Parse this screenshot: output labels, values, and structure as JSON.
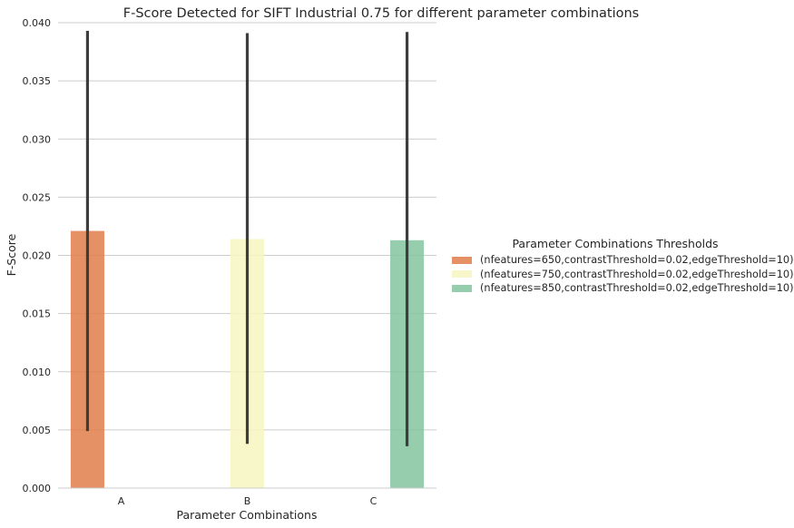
{
  "chart_data": {
    "type": "bar",
    "title": "F-Score Detected for SIFT Industrial 0.75 for different parameter combinations",
    "xlabel": "Parameter Combinations",
    "ylabel": "F-Score",
    "categories": [
      "A",
      "B",
      "C"
    ],
    "ylim": [
      0,
      0.04
    ],
    "yticks": [
      "0.000",
      "0.005",
      "0.010",
      "0.015",
      "0.020",
      "0.025",
      "0.030",
      "0.035",
      "0.040"
    ],
    "grid": "horizontal",
    "legend_title": "Parameter Combinations Thresholds",
    "legend_position": "right",
    "series": [
      {
        "name": "(nfeatures=650,contrastThreshold=0.02,edgeThreshold=10)",
        "color": "#e07d4a",
        "values": [
          0.0221,
          null,
          null
        ],
        "ci_low": [
          0.0049,
          null,
          null
        ],
        "ci_high": [
          0.0393,
          null,
          null
        ]
      },
      {
        "name": "(nfeatures=750,contrastThreshold=0.02,edgeThreshold=10)",
        "color": "#f7f6c1",
        "values": [
          null,
          0.0214,
          null
        ],
        "ci_low": [
          null,
          0.0038,
          null
        ],
        "ci_high": [
          null,
          0.0391,
          null
        ]
      },
      {
        "name": "(nfeatures=850,contrastThreshold=0.02,edgeThreshold=10)",
        "color": "#84c49f",
        "values": [
          null,
          null,
          0.0213
        ],
        "ci_low": [
          null,
          null,
          0.0036
        ],
        "ci_high": [
          null,
          null,
          0.0392
        ]
      }
    ]
  }
}
